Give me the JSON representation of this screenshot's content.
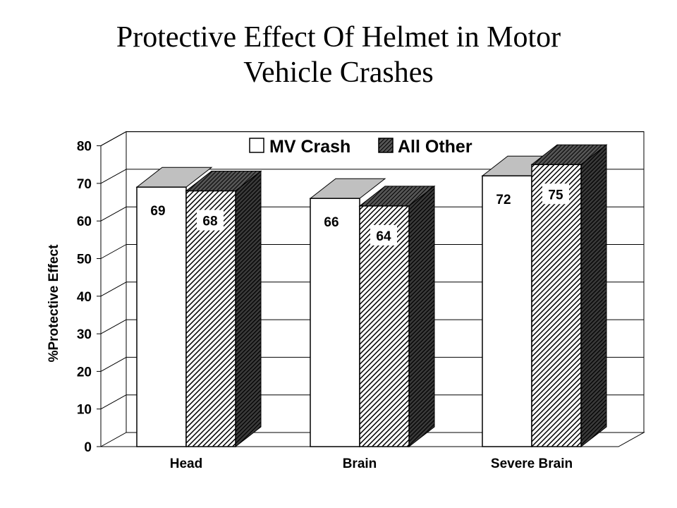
{
  "chart_data": {
    "type": "bar",
    "title_line1": "Protective Effect Of Helmet in Motor",
    "title_line2": "Vehicle Crashes",
    "ylabel": "%Protective Effect",
    "xlabel": "",
    "ylim": [
      0,
      80
    ],
    "yticks": [
      0,
      10,
      20,
      30,
      40,
      50,
      60,
      70,
      80
    ],
    "grid": true,
    "legend_placement": "top-center",
    "categories": [
      "Head",
      "Brain",
      "Severe Brain"
    ],
    "series": [
      {
        "name": "MV Crash",
        "values": [
          69,
          66,
          72
        ],
        "fill": "white"
      },
      {
        "name": "All Other",
        "values": [
          68,
          64,
          75
        ],
        "fill": "hatched"
      }
    ],
    "colors": {
      "front": "#ffffff",
      "top_light": "#c0c0c0",
      "dark": "#1a1a1a",
      "hatch": "#000000"
    }
  }
}
